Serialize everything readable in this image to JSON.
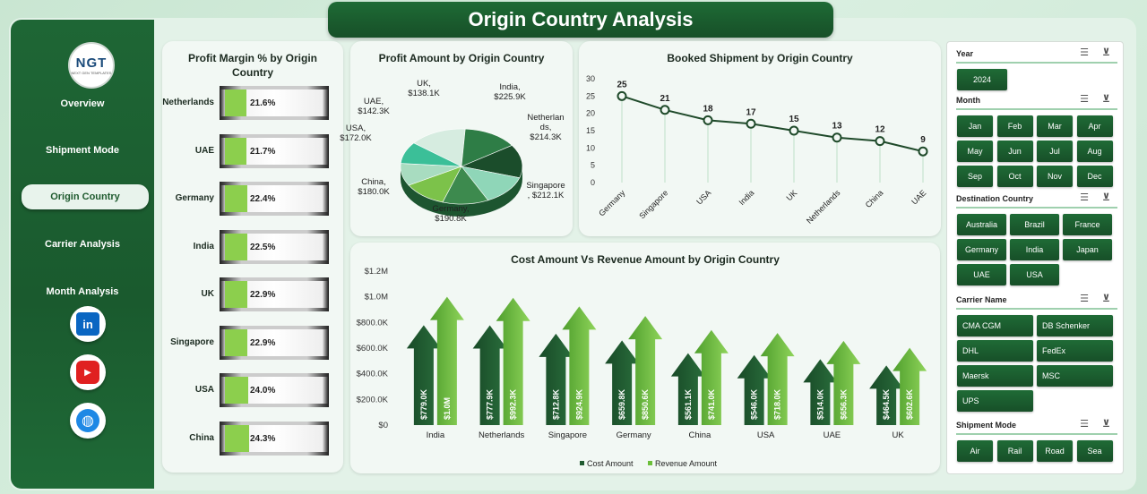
{
  "title": "Origin Country  Analysis",
  "logo": {
    "text": "NGT",
    "subtext": "NEXT GEN TEMPLATES"
  },
  "sidebar": {
    "items": [
      {
        "label": "Overview"
      },
      {
        "label": "Shipment Mode"
      },
      {
        "label": "Origin Country",
        "active": true
      },
      {
        "label": "Carrier  Analysis"
      },
      {
        "label": "Month Analysis"
      }
    ],
    "social": [
      {
        "name": "linkedin-icon",
        "glyph": "in",
        "color": "#0a66c2"
      },
      {
        "name": "youtube-icon",
        "glyph": "▶",
        "color": "#e02020"
      },
      {
        "name": "globe-icon",
        "glyph": "◍",
        "color": "#1e88e5"
      }
    ]
  },
  "profit_margin": {
    "title_line1": "Profit Margin % by Origin",
    "title_line2": "Country",
    "rows": [
      {
        "country": "Netherlands",
        "value": 21.6,
        "label": "21.6%"
      },
      {
        "country": "UAE",
        "value": 21.7,
        "label": "21.7%"
      },
      {
        "country": "Germany",
        "value": 22.4,
        "label": "22.4%"
      },
      {
        "country": "India",
        "value": 22.5,
        "label": "22.5%"
      },
      {
        "country": "UK",
        "value": 22.9,
        "label": "22.9%"
      },
      {
        "country": "Singapore",
        "value": 22.9,
        "label": "22.9%"
      },
      {
        "country": "USA",
        "value": 24.0,
        "label": "24.0%"
      },
      {
        "country": "China",
        "value": 24.3,
        "label": "24.3%"
      }
    ]
  },
  "profit_amount": {
    "title": "Profit Amount by Origin Country",
    "slices": [
      {
        "country": "India",
        "value": 225.9,
        "label_line1": "India,",
        "label_line2": "$225.9K",
        "color": "#d6ece0"
      },
      {
        "country": "Netherlands",
        "value": 214.3,
        "label_line1": "Netherlan",
        "label_line2": "ds,",
        "label_line3": "$214.3K",
        "color": "#2e7d46"
      },
      {
        "country": "Singapore",
        "value": 212.1,
        "label_line1": "Singapore",
        "label_line2": ", $212.1K",
        "color": "#1b4d2b"
      },
      {
        "country": "Germany",
        "value": 190.8,
        "label_line1": "Germany,",
        "label_line2": "$190.8K",
        "color": "#8fd6b8"
      },
      {
        "country": "China",
        "value": 180.0,
        "label_line1": "China,",
        "label_line2": "$180.0K",
        "color": "#3d8a4e"
      },
      {
        "country": "USA",
        "value": 172.0,
        "label_line1": "USA,",
        "label_line2": "$172.0K",
        "color": "#7cc24a"
      },
      {
        "country": "UAE",
        "value": 142.3,
        "label_line1": "UAE,",
        "label_line2": "$142.3K",
        "color": "#a8dcc0"
      },
      {
        "country": "UK",
        "value": 138.1,
        "label_line1": "UK,",
        "label_line2": "$138.1K",
        "color": "#3bbf98"
      }
    ]
  },
  "booked_shipment": {
    "title": "Booked Shipment by Origin Country",
    "yticks": [
      "30",
      "25",
      "20",
      "15",
      "10",
      "5",
      "0"
    ]
  },
  "cost_revenue": {
    "title": "Cost Amount Vs Revenue Amount by Origin Country",
    "yticks": [
      "$1.2M",
      "$1.0M",
      "$800.0K",
      "$600.0K",
      "$400.0K",
      "$200.0K",
      "$0"
    ],
    "legend_cost": "Cost Amount",
    "legend_revenue": "Revenue Amount"
  },
  "chart_data": [
    {
      "type": "line",
      "title": "Booked Shipment by Origin Country",
      "categories": [
        "Germany",
        "Singapore",
        "USA",
        "India",
        "UK",
        "Netherlands",
        "China",
        "UAE"
      ],
      "values": [
        25,
        21,
        18,
        17,
        15,
        13,
        12,
        9
      ],
      "ylim": [
        0,
        30
      ]
    },
    {
      "type": "bar",
      "title": "Cost Amount Vs Revenue Amount by Origin Country",
      "categories": [
        "India",
        "Netherlands",
        "Singapore",
        "Germany",
        "China",
        "USA",
        "UAE",
        "UK"
      ],
      "series": [
        {
          "name": "Cost Amount",
          "values": [
            779000,
            777900,
            712800,
            659800,
            561100,
            546000,
            514000,
            464500
          ],
          "labels": [
            "$779.0K",
            "$777.9K",
            "$712.8K",
            "$659.8K",
            "$561.1K",
            "$546.0K",
            "$514.0K",
            "$464.5K"
          ],
          "color": "#1f5a30"
        },
        {
          "name": "Revenue Amount",
          "values": [
            1000000,
            992300,
            924900,
            850600,
            741000,
            718000,
            656300,
            602600
          ],
          "labels": [
            "$1.0M",
            "$992.3K",
            "$924.9K",
            "$850.6K",
            "$741.0K",
            "$718.0K",
            "$656.3K",
            "$602.6K"
          ],
          "color": "#6cbf3a"
        }
      ],
      "ylim": [
        0,
        1200000
      ]
    },
    {
      "type": "pie",
      "title": "Profit Amount by Origin Country",
      "categories": [
        "India",
        "Netherlands",
        "Singapore",
        "Germany",
        "China",
        "USA",
        "UAE",
        "UK"
      ],
      "values": [
        225.9,
        214.3,
        212.1,
        190.8,
        180.0,
        172.0,
        142.3,
        138.1
      ]
    },
    {
      "type": "bar",
      "title": "Profit Margin % by Origin Country",
      "categories": [
        "Netherlands",
        "UAE",
        "Germany",
        "India",
        "UK",
        "Singapore",
        "USA",
        "China"
      ],
      "values": [
        21.6,
        21.7,
        22.4,
        22.5,
        22.9,
        22.9,
        24.0,
        24.3
      ]
    }
  ],
  "slicers": {
    "year": {
      "title": "Year",
      "items": [
        "2024"
      ]
    },
    "month": {
      "title": "Month",
      "items": [
        "Jan",
        "Feb",
        "Mar",
        "Apr",
        "May",
        "Jun",
        "Jul",
        "Aug",
        "Sep",
        "Oct",
        "Nov",
        "Dec"
      ]
    },
    "destination": {
      "title": "Destination Country",
      "items": [
        "Australia",
        "Brazil",
        "France",
        "Germany",
        "India",
        "Japan",
        "UAE",
        "USA"
      ]
    },
    "carrier": {
      "title": "Carrier Name",
      "items": [
        "CMA CGM",
        "DB Schenker",
        "DHL",
        "FedEx",
        "Maersk",
        "MSC",
        "UPS"
      ]
    },
    "shipment_mode": {
      "title": "Shipment Mode",
      "items": [
        "Air",
        "Rail",
        "Road",
        "Sea"
      ]
    }
  }
}
